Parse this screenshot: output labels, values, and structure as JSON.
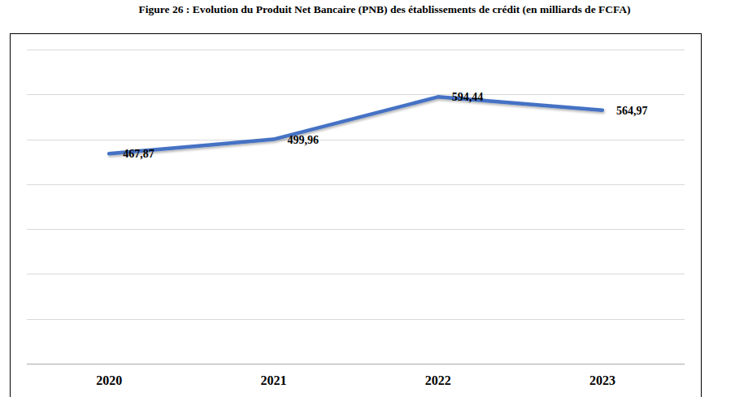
{
  "chart_data": {
    "type": "line",
    "title": "Figure 26 : Evolution du Produit Net Bancaire (PNB) des établissements de crédit (en milliards de FCFA)",
    "categories": [
      "2020",
      "2021",
      "2022",
      "2023"
    ],
    "values": [
      467.87,
      499.96,
      594.44,
      564.97
    ],
    "value_labels": [
      "467,87",
      "499,96",
      "594,44",
      "564,97"
    ],
    "color": "#4472c4",
    "ylim": [
      0,
      700
    ],
    "yticks": [
      0,
      100,
      200,
      300,
      400,
      500,
      600,
      700
    ],
    "grid": true,
    "data_labels": true,
    "tick_labels": "x"
  }
}
